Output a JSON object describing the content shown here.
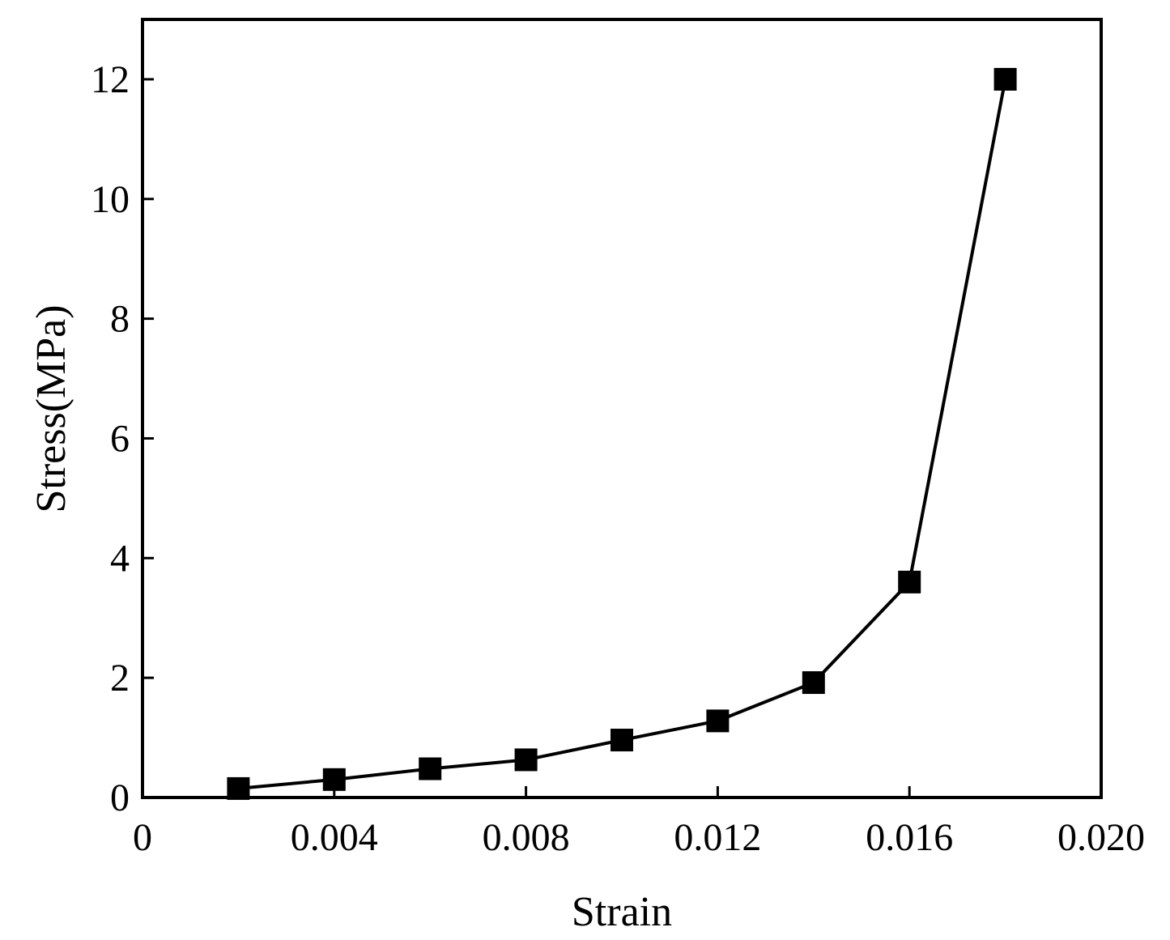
{
  "chart_data": {
    "type": "line",
    "title": "",
    "xlabel": "Strain",
    "ylabel": "Stress(MPa)",
    "xlim": [
      0,
      0.02
    ],
    "ylim": [
      0,
      13
    ],
    "xticks": [
      0,
      0.004,
      0.008,
      0.012,
      0.016,
      0.02
    ],
    "xtick_labels": [
      "0",
      "0.004",
      "0.008",
      "0.012",
      "0.016",
      "0.020"
    ],
    "yticks": [
      0,
      2,
      4,
      6,
      8,
      10,
      12
    ],
    "ytick_labels": [
      "0",
      "2",
      "4",
      "6",
      "8",
      "10",
      "12"
    ],
    "grid": false,
    "legend": "none",
    "marker": "square",
    "color": "#000000",
    "series": [
      {
        "x": [
          0.002,
          0.004,
          0.006,
          0.008,
          0.01,
          0.012,
          0.014,
          0.016,
          0.018
        ],
        "y": [
          0.15,
          0.3,
          0.48,
          0.63,
          0.96,
          1.28,
          1.92,
          3.6,
          12.0
        ]
      }
    ]
  }
}
